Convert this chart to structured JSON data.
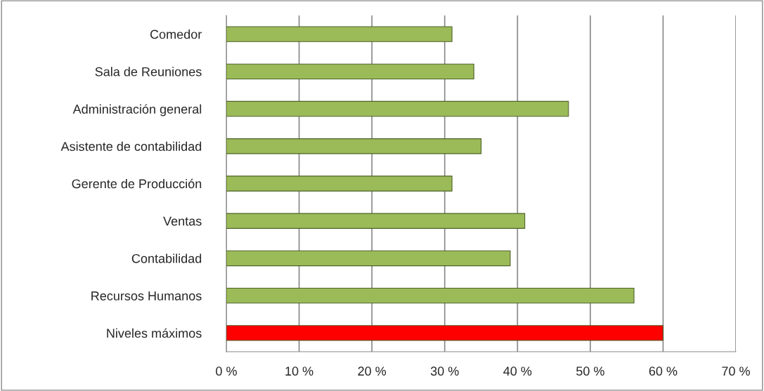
{
  "chart_data": {
    "type": "bar",
    "orientation": "horizontal",
    "categories": [
      "Comedor",
      "Sala de Reuniones",
      "Administración general",
      "Asistente de contabilidad",
      "Gerente de Producción",
      "Ventas",
      "Contabilidad",
      "Recursos Humanos",
      "Niveles máximos"
    ],
    "values": [
      31,
      34,
      47,
      35,
      31,
      41,
      39,
      56,
      60
    ],
    "colors": [
      "#9bbb59",
      "#9bbb59",
      "#9bbb59",
      "#9bbb59",
      "#9bbb59",
      "#9bbb59",
      "#9bbb59",
      "#9bbb59",
      "#ff0000"
    ],
    "xlim": [
      0,
      70
    ],
    "xticks": [
      {
        "value": 0,
        "label": "0 %"
      },
      {
        "value": 10,
        "label": "10 %"
      },
      {
        "value": 20,
        "label": "20 %"
      },
      {
        "value": 30,
        "label": "30 %"
      },
      {
        "value": 40,
        "label": "40 %"
      },
      {
        "value": 50,
        "label": "50 %"
      },
      {
        "value": 60,
        "label": "60 %"
      },
      {
        "value": 70,
        "label": "70 %"
      }
    ],
    "grid": "x",
    "legend": false
  }
}
